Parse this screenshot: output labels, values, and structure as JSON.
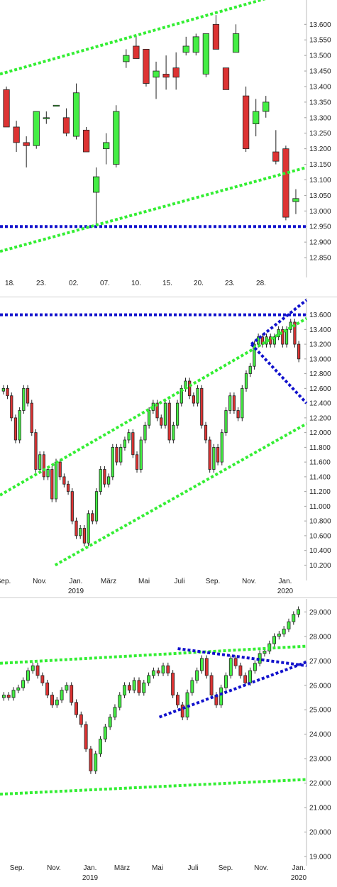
{
  "chart_data": [
    {
      "type": "candlestick",
      "period": "daily",
      "y_ticks": [
        12.85,
        12.9,
        12.95,
        13.0,
        13.05,
        13.1,
        13.15,
        13.2,
        13.25,
        13.3,
        13.35,
        13.4,
        13.45,
        13.5,
        13.55,
        13.6
      ],
      "y_tick_labels": [
        "12.850",
        "12.900",
        "12.950",
        "13.000",
        "13.050",
        "13.100",
        "13.150",
        "13.200",
        "13.250",
        "13.300",
        "13.350",
        "13.400",
        "13.450",
        "13.500",
        "13.550",
        "13.600"
      ],
      "ylim": [
        12.8,
        13.66
      ],
      "x_labels": [
        "18.",
        "23.",
        "02.",
        "07.",
        "10.",
        "15.",
        "20.",
        "23.",
        "28."
      ],
      "colors": {
        "up": "#44ee44",
        "down": "#dd3333",
        "trend": "#33ee33",
        "support": "#1111cc"
      },
      "candles": [
        {
          "o": 13.39,
          "h": 13.4,
          "l": 13.27,
          "c": 13.27
        },
        {
          "o": 13.27,
          "h": 13.29,
          "l": 13.19,
          "c": 13.22
        },
        {
          "o": 13.22,
          "h": 13.24,
          "l": 13.14,
          "c": 13.21
        },
        {
          "o": 13.21,
          "h": 13.32,
          "l": 13.2,
          "c": 13.32
        },
        {
          "o": 13.3,
          "h": 13.32,
          "l": 13.28,
          "c": 13.3
        },
        {
          "o": 13.34,
          "h": 13.34,
          "l": 13.34,
          "c": 13.34
        },
        {
          "o": 13.3,
          "h": 13.33,
          "l": 13.24,
          "c": 13.25
        },
        {
          "o": 13.24,
          "h": 13.41,
          "l": 13.23,
          "c": 13.38
        },
        {
          "o": 13.26,
          "h": 13.27,
          "l": 13.19,
          "c": 13.19
        },
        {
          "o": 13.06,
          "h": 13.14,
          "l": 12.95,
          "c": 13.11
        },
        {
          "o": 13.2,
          "h": 13.25,
          "l": 13.15,
          "c": 13.22
        },
        {
          "o": 13.15,
          "h": 13.34,
          "l": 13.14,
          "c": 13.32
        },
        {
          "o": 13.48,
          "h": 13.52,
          "l": 13.46,
          "c": 13.5
        },
        {
          "o": 13.53,
          "h": 13.56,
          "l": 13.49,
          "c": 13.49
        },
        {
          "o": 13.52,
          "h": 13.52,
          "l": 13.4,
          "c": 13.41
        },
        {
          "o": 13.43,
          "h": 13.48,
          "l": 13.36,
          "c": 13.45
        },
        {
          "o": 13.44,
          "h": 13.5,
          "l": 13.39,
          "c": 13.43
        },
        {
          "o": 13.46,
          "h": 13.51,
          "l": 13.39,
          "c": 13.43
        },
        {
          "o": 13.51,
          "h": 13.56,
          "l": 13.5,
          "c": 13.53
        },
        {
          "o": 13.51,
          "h": 13.57,
          "l": 13.5,
          "c": 13.56
        },
        {
          "o": 13.44,
          "h": 13.57,
          "l": 13.43,
          "c": 13.57
        },
        {
          "o": 13.6,
          "h": 13.63,
          "l": 13.52,
          "c": 13.52
        },
        {
          "o": 13.46,
          "h": 13.46,
          "l": 13.39,
          "c": 13.39
        },
        {
          "o": 13.51,
          "h": 13.6,
          "l": 13.51,
          "c": 13.57
        },
        {
          "o": 13.37,
          "h": 13.4,
          "l": 13.19,
          "c": 13.2
        },
        {
          "o": 13.28,
          "h": 13.36,
          "l": 13.24,
          "c": 13.32
        },
        {
          "o": 13.32,
          "h": 13.37,
          "l": 13.3,
          "c": 13.35
        },
        {
          "o": 13.19,
          "h": 13.26,
          "l": 13.15,
          "c": 13.16
        },
        {
          "o": 13.2,
          "h": 13.21,
          "l": 12.97,
          "c": 12.98
        },
        {
          "o": 13.03,
          "h": 13.07,
          "l": 12.99,
          "c": 13.04
        }
      ],
      "trend_lines": [
        {
          "x1": 0,
          "y1": 13.44,
          "x2": 1,
          "y2": 13.72
        },
        {
          "x1": 0,
          "y1": 12.87,
          "x2": 1,
          "y2": 13.14
        }
      ],
      "support_level": 12.95
    },
    {
      "type": "candlestick",
      "period": "weekly",
      "y_ticks": [
        10.2,
        10.4,
        10.6,
        10.8,
        11.0,
        11.2,
        11.4,
        11.6,
        11.8,
        12.0,
        12.2,
        12.4,
        12.6,
        12.8,
        13.0,
        13.2,
        13.4,
        13.6
      ],
      "y_tick_labels": [
        "10.200",
        "10.400",
        "10.600",
        "10.800",
        "11.000",
        "11.200",
        "11.400",
        "11.600",
        "11.800",
        "12.000",
        "12.200",
        "12.400",
        "12.600",
        "12.800",
        "13.000",
        "13.200",
        "13.400",
        "13.600"
      ],
      "ylim": [
        10.05,
        13.75
      ],
      "x_labels": [
        "Sep.",
        "Nov.",
        "Jan.",
        "März",
        "Mai",
        "Juli",
        "Sep.",
        "Nov.",
        "Jan."
      ],
      "year_labels": [
        "2019",
        "2020"
      ],
      "closes": [
        12.6,
        12.5,
        12.2,
        11.9,
        12.3,
        12.6,
        12.4,
        12.0,
        11.5,
        11.7,
        11.4,
        11.5,
        11.1,
        11.6,
        11.4,
        11.3,
        11.2,
        10.8,
        10.6,
        10.7,
        10.5,
        10.9,
        10.8,
        11.2,
        11.5,
        11.3,
        11.4,
        11.8,
        11.6,
        11.8,
        11.9,
        12.0,
        11.7,
        11.5,
        11.9,
        12.1,
        12.3,
        12.4,
        12.2,
        12.1,
        12.4,
        11.9,
        12.1,
        12.4,
        12.6,
        12.7,
        12.5,
        12.4,
        12.6,
        12.1,
        11.9,
        11.5,
        11.8,
        11.6,
        12.0,
        12.3,
        12.5,
        12.3,
        12.2,
        12.6,
        12.8,
        12.9,
        13.2,
        13.3,
        13.2,
        13.3,
        13.2,
        13.3,
        13.4,
        13.2,
        13.4,
        13.5,
        13.2,
        13.0
      ],
      "trend_lines": [
        {
          "x1": 0,
          "y1": 11.15,
          "x2": 1,
          "y2": 13.55
        },
        {
          "x1": 0.18,
          "y1": 10.2,
          "x2": 1,
          "y2": 12.12
        },
        {
          "x1": 0.82,
          "y1": 13.2,
          "x2": 1,
          "y2": 13.8
        },
        {
          "x1": 0.82,
          "y1": 13.2,
          "x2": 1,
          "y2": 12.4
        }
      ],
      "resistance_level": 13.6
    },
    {
      "type": "candlestick",
      "period": "weekly",
      "y_ticks": [
        19.0,
        20.0,
        21.0,
        22.0,
        23.0,
        24.0,
        25.0,
        26.0,
        27.0,
        28.0,
        29.0
      ],
      "y_tick_labels": [
        "19.000",
        "20.000",
        "21.000",
        "22.000",
        "23.000",
        "24.000",
        "25.000",
        "26.000",
        "27.000",
        "28.000",
        "29.000"
      ],
      "ylim": [
        18.8,
        29.3
      ],
      "x_labels": [
        "Sep.",
        "Nov.",
        "Jan.",
        "März",
        "Mai",
        "Juli",
        "Sep.",
        "Nov.",
        "Jan."
      ],
      "year_labels": [
        "2019",
        "2020"
      ],
      "closes": [
        25.6,
        25.5,
        25.8,
        25.9,
        26.2,
        26.6,
        26.8,
        26.4,
        26.1,
        25.6,
        25.2,
        25.4,
        25.8,
        26.0,
        25.3,
        24.8,
        24.4,
        23.4,
        22.5,
        23.2,
        23.8,
        24.3,
        24.7,
        25.1,
        25.6,
        26.0,
        25.8,
        26.2,
        25.7,
        26.1,
        26.4,
        26.6,
        26.5,
        26.8,
        26.5,
        25.6,
        25.2,
        24.7,
        25.7,
        26.2,
        26.6,
        27.1,
        26.4,
        25.6,
        25.2,
        25.9,
        26.4,
        27.1,
        26.8,
        26.4,
        26.1,
        26.6,
        26.9,
        27.3,
        27.4,
        27.7,
        28.0,
        28.1,
        28.3,
        28.6,
        28.9,
        29.1
      ],
      "trend_lines": [
        {
          "x1": 0,
          "y1": 26.9,
          "x2": 1,
          "y2": 27.6
        },
        {
          "x1": 0,
          "y1": 21.55,
          "x2": 1,
          "y2": 22.15
        },
        {
          "x1": 0.58,
          "y1": 27.5,
          "x2": 1,
          "y2": 26.8
        },
        {
          "x1": 0.52,
          "y1": 24.7,
          "x2": 1,
          "y2": 26.95
        }
      ]
    }
  ]
}
